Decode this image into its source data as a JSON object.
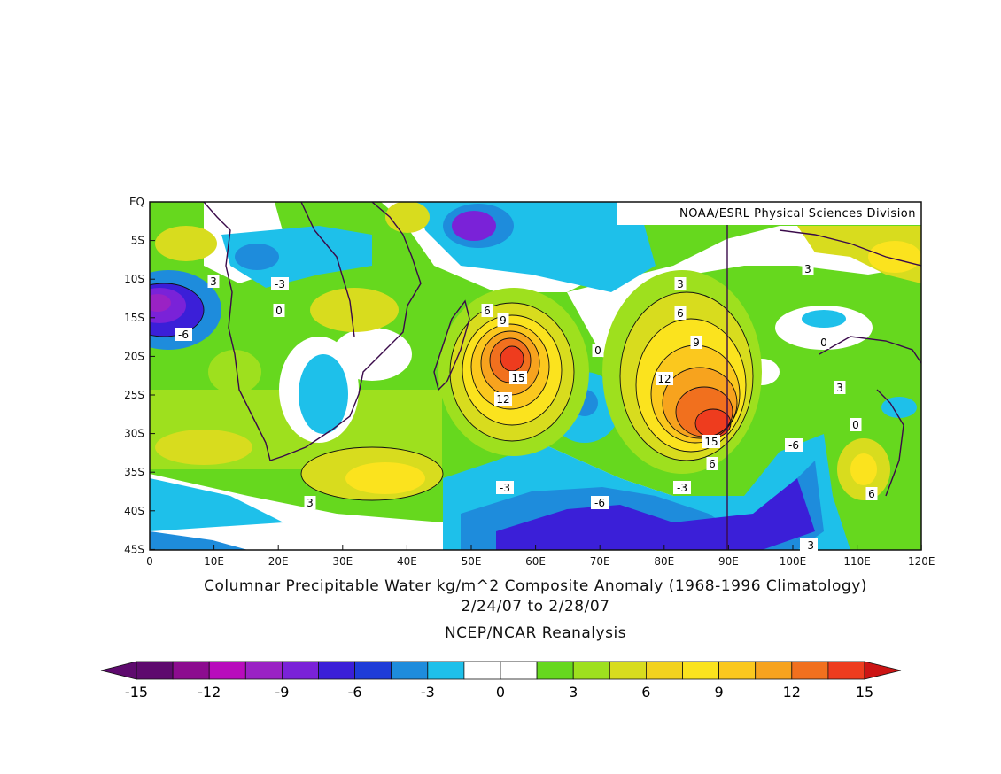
{
  "credit": "NOAA/ESRL Physical Sciences Division",
  "caption": {
    "title": "Columnar Precipitable Water kg/m^2 Composite Anomaly (1968-1996 Climatology)",
    "dates": "2/24/07  to 2/28/07",
    "source": "NCEP/NCAR Reanalysis"
  },
  "map": {
    "lat_labels": [
      "EQ",
      "5S",
      "10S",
      "15S",
      "20S",
      "25S",
      "30S",
      "35S",
      "40S",
      "45S"
    ],
    "lon_labels": [
      "0",
      "10E",
      "20E",
      "30E",
      "40E",
      "50E",
      "60E",
      "70E",
      "80E",
      "90E",
      "100E",
      "110E",
      "120E"
    ],
    "contour_labels": [
      "-3",
      "-6",
      "3",
      "0",
      "6",
      "9",
      "12",
      "15",
      "-3",
      "0",
      "3",
      "6",
      "9",
      "12",
      "15",
      "-6",
      "-3",
      "3",
      "0",
      "6",
      "-3",
      "-6",
      "3",
      "0",
      "3",
      "6"
    ]
  },
  "colorbar": {
    "ticks": [
      "-15",
      "-12",
      "-9",
      "-6",
      "-3",
      "0",
      "3",
      "6",
      "9",
      "12",
      "15"
    ],
    "colors": [
      "#5e0a6e",
      "#8c0c8f",
      "#b80cbc",
      "#9a22c4",
      "#7a22d8",
      "#3b1fd8",
      "#1e3cd8",
      "#1e8cdc",
      "#1ec0ea",
      "#ffffff",
      "#ffffff",
      "#66d81e",
      "#9ee01e",
      "#d8dc1e",
      "#f2d21e",
      "#fbe31e",
      "#fbc81e",
      "#f7a31e",
      "#f1701e",
      "#ee3c1e"
    ],
    "min_arrow_color": "#5e0a6e",
    "max_arrow_color": "#cc1414"
  }
}
